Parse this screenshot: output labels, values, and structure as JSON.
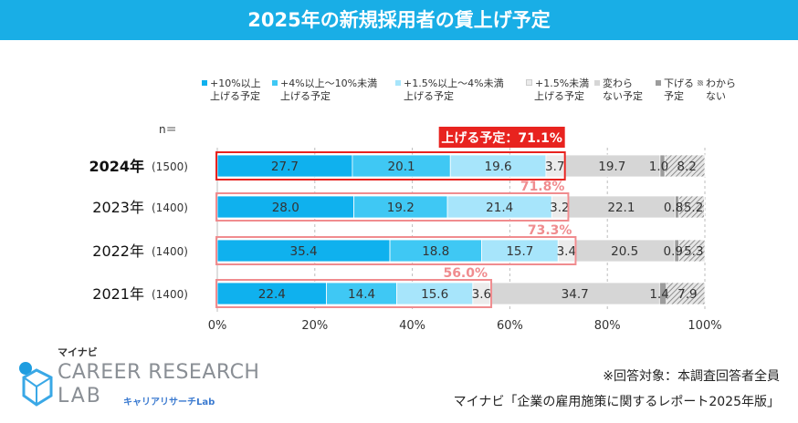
{
  "title": "2025年の新規採用者の賃上げ予定",
  "n_label": "n＝",
  "colors": {
    "title_bg": "#19aee6",
    "seg": [
      "#0fb1ee",
      "#3fc8f4",
      "#a7e5fb",
      "#ebebeb",
      "#d6d6d6",
      "#9c9c9c",
      "#d9d9d9"
    ],
    "highlight_2024": "#e8231f",
    "highlight_past": "#f08c8f"
  },
  "legend": [
    {
      "line1": "+10%以上",
      "line2": "上げる予定"
    },
    {
      "line1": "+4%以上～10%未満",
      "line2": "上げる予定"
    },
    {
      "line1": "+1.5%以上～4%未満",
      "line2": "上げる予定"
    },
    {
      "line1": "+1.5%未満",
      "line2": "上げる予定"
    },
    {
      "line1": "変わら",
      "line2": "ない予定"
    },
    {
      "line1": "下げる",
      "line2": "予定"
    },
    {
      "line1": "わから",
      "line2": "ない"
    }
  ],
  "chart_data": {
    "type": "bar",
    "orientation": "horizontal-stacked-100",
    "categories": [
      "2024年",
      "2023年",
      "2022年",
      "2021年"
    ],
    "sample_sizes": [
      "(1500)",
      "(1400)",
      "(1400)",
      "(1400)"
    ],
    "series": [
      {
        "name": "+10%以上上げる予定",
        "values": [
          27.7,
          28.0,
          35.4,
          22.4
        ]
      },
      {
        "name": "+4%以上～10%未満上げる予定",
        "values": [
          20.1,
          19.2,
          18.8,
          14.4
        ]
      },
      {
        "name": "+1.5%以上～4%未満上げる予定",
        "values": [
          19.6,
          21.4,
          15.7,
          15.6
        ]
      },
      {
        "name": "+1.5%未満上げる予定",
        "values": [
          3.7,
          3.2,
          3.4,
          3.6
        ]
      },
      {
        "name": "変わらない予定",
        "values": [
          19.7,
          22.1,
          20.5,
          34.7
        ]
      },
      {
        "name": "下げる予定",
        "values": [
          1.0,
          0.8,
          0.9,
          1.4
        ]
      },
      {
        "name": "わからない",
        "values": [
          8.2,
          5.2,
          5.3,
          7.9
        ]
      }
    ],
    "labels": [
      [
        "27.7",
        "20.1",
        "19.6",
        "3.7",
        "19.7",
        "1.0",
        "8.2"
      ],
      [
        "28.0",
        "19.2",
        "21.4",
        "3.2",
        "22.1",
        "0.8",
        "5.2"
      ],
      [
        "35.4",
        "18.8",
        "15.7",
        "3.4",
        "20.5",
        "0.9",
        "5.3"
      ],
      [
        "22.4",
        "14.4",
        "15.6",
        "3.6",
        "34.7",
        "1.4",
        "7.9"
      ]
    ],
    "raise_totals": [
      "上げる予定：71.1%",
      "71.8%",
      "73.3%",
      "56.0%"
    ],
    "x_ticks": [
      "0%",
      "20%",
      "40%",
      "60%",
      "80%",
      "100%"
    ],
    "xlim": [
      0,
      100
    ]
  },
  "note": "※回答対象：本調査回答者全員",
  "source": "マイナビ「企業の雇用施策に関するレポート2025年版」",
  "logo": {
    "brand": "マイナビ",
    "line1": "CAREER RESEARCH",
    "line2": "LAB",
    "sub": "キャリアリサーチLab"
  }
}
